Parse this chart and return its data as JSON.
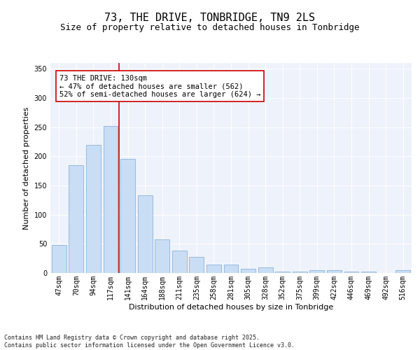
{
  "title": "73, THE DRIVE, TONBRIDGE, TN9 2LS",
  "subtitle": "Size of property relative to detached houses in Tonbridge",
  "xlabel": "Distribution of detached houses by size in Tonbridge",
  "ylabel": "Number of detached properties",
  "categories": [
    "47sqm",
    "70sqm",
    "94sqm",
    "117sqm",
    "141sqm",
    "164sqm",
    "188sqm",
    "211sqm",
    "235sqm",
    "258sqm",
    "281sqm",
    "305sqm",
    "328sqm",
    "352sqm",
    "375sqm",
    "399sqm",
    "422sqm",
    "446sqm",
    "469sqm",
    "492sqm",
    "516sqm"
  ],
  "values": [
    48,
    185,
    220,
    252,
    196,
    133,
    58,
    38,
    28,
    15,
    14,
    7,
    10,
    2,
    2,
    5,
    5,
    2,
    2,
    0,
    5
  ],
  "bar_color": "#c9ddf5",
  "bar_edge_color": "#8cb4d8",
  "vline_x": 3.5,
  "vline_color": "#cc0000",
  "annotation_text": "73 THE DRIVE: 130sqm\n← 47% of detached houses are smaller (562)\n52% of semi-detached houses are larger (624) →",
  "annotation_box_color": "#ffffff",
  "annotation_box_edge_color": "#cc0000",
  "ylim": [
    0,
    360
  ],
  "yticks": [
    0,
    50,
    100,
    150,
    200,
    250,
    300,
    350
  ],
  "background_color": "#eef2fb",
  "footer": "Contains HM Land Registry data © Crown copyright and database right 2025.\nContains public sector information licensed under the Open Government Licence v3.0.",
  "title_fontsize": 11,
  "subtitle_fontsize": 9,
  "axis_fontsize": 8,
  "tick_fontsize": 7,
  "ann_fontsize": 7.5
}
